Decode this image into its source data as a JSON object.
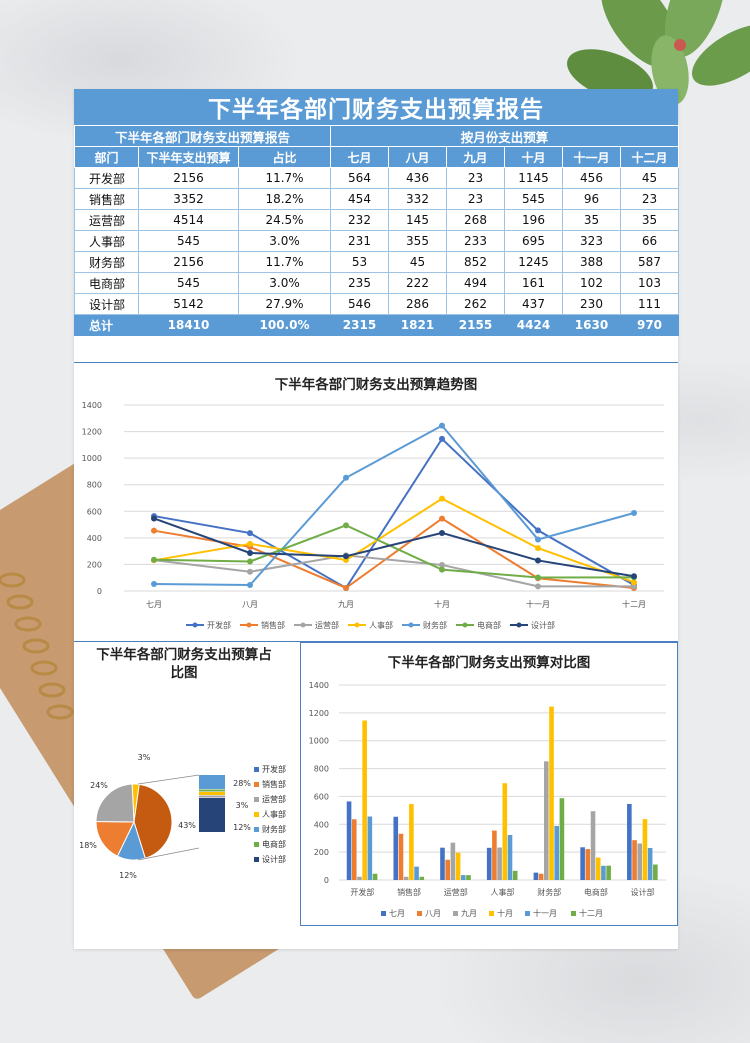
{
  "report": {
    "main_title": "下半年各部门财务支出预算报告",
    "left_header": "下半年各部门财务支出预算报告",
    "right_header": "按月份支出预算",
    "columns": [
      "部门",
      "下半年支出预算",
      "占比",
      "七月",
      "八月",
      "九月",
      "十月",
      "十一月",
      "十二月"
    ],
    "rows": [
      {
        "dept": "开发部",
        "budget": "2156",
        "pct": "11.7%",
        "m": [
          "564",
          "436",
          "23",
          "1145",
          "456",
          "45"
        ]
      },
      {
        "dept": "销售部",
        "budget": "3352",
        "pct": "18.2%",
        "m": [
          "454",
          "332",
          "23",
          "545",
          "96",
          "23"
        ]
      },
      {
        "dept": "运营部",
        "budget": "4514",
        "pct": "24.5%",
        "m": [
          "232",
          "145",
          "268",
          "196",
          "35",
          "35"
        ]
      },
      {
        "dept": "人事部",
        "budget": "545",
        "pct": "3.0%",
        "m": [
          "231",
          "355",
          "233",
          "695",
          "323",
          "66"
        ]
      },
      {
        "dept": "财务部",
        "budget": "2156",
        "pct": "11.7%",
        "m": [
          "53",
          "45",
          "852",
          "1245",
          "388",
          "587"
        ]
      },
      {
        "dept": "电商部",
        "budget": "545",
        "pct": "3.0%",
        "m": [
          "235",
          "222",
          "494",
          "161",
          "102",
          "103"
        ]
      },
      {
        "dept": "设计部",
        "budget": "5142",
        "pct": "27.9%",
        "m": [
          "546",
          "286",
          "262",
          "437",
          "230",
          "111"
        ]
      }
    ],
    "total": {
      "label": "总计",
      "budget": "18410",
      "pct": "100.0%",
      "m": [
        "2315",
        "1821",
        "2155",
        "4424",
        "1630",
        "970"
      ]
    }
  },
  "colors": {
    "header_blue": "#5b9bd5",
    "series": [
      "#4472c4",
      "#ed7d31",
      "#a5a5a5",
      "#ffc000",
      "#5b9bd5",
      "#70ad47",
      "#264478"
    ]
  },
  "chart_data": [
    {
      "type": "line",
      "title": "下半年各部门财务支出预算趋势图",
      "categories": [
        "七月",
        "八月",
        "九月",
        "十月",
        "十一月",
        "十二月"
      ],
      "ylim": [
        0,
        1400
      ],
      "yticks": [
        "0",
        "200",
        "400",
        "600",
        "800",
        "1000",
        "1200",
        "1400"
      ],
      "legend_position": "bottom",
      "series": [
        {
          "name": "开发部",
          "values": [
            564,
            436,
            23,
            1145,
            456,
            45
          ]
        },
        {
          "name": "销售部",
          "values": [
            454,
            332,
            23,
            545,
            96,
            23
          ]
        },
        {
          "name": "运营部",
          "values": [
            232,
            145,
            268,
            196,
            35,
            35
          ]
        },
        {
          "name": "人事部",
          "values": [
            231,
            355,
            233,
            695,
            323,
            66
          ]
        },
        {
          "name": "财务部",
          "values": [
            53,
            45,
            852,
            1245,
            388,
            587
          ]
        },
        {
          "name": "电商部",
          "values": [
            235,
            222,
            494,
            161,
            102,
            103
          ]
        },
        {
          "name": "设计部",
          "values": [
            546,
            286,
            262,
            437,
            230,
            111
          ]
        }
      ]
    },
    {
      "type": "pie",
      "title": "下半年各部门财务支出预算占比图",
      "slices": [
        {
          "name": "开发部",
          "value": 11.7,
          "label": "12%"
        },
        {
          "name": "销售部",
          "value": 18.2,
          "label": "18%"
        },
        {
          "name": "运营部",
          "value": 24.5,
          "label": "24%"
        },
        {
          "name": "人事部",
          "value": 3.0,
          "label": "3%"
        },
        {
          "name": "财务部",
          "value": 11.7,
          "label": "12%"
        },
        {
          "name": "电商部",
          "value": 3.0,
          "label": "3%"
        },
        {
          "name": "设计部",
          "value": 27.9,
          "label": "28%"
        }
      ],
      "big_slice_label": "43%",
      "legend_position": "right"
    },
    {
      "type": "bar",
      "title": "下半年各部门财务支出预算对比图",
      "categories": [
        "开发部",
        "销售部",
        "运营部",
        "人事部",
        "财务部",
        "电商部",
        "设计部"
      ],
      "ylim": [
        0,
        1400
      ],
      "yticks": [
        "0",
        "200",
        "400",
        "600",
        "800",
        "1000",
        "1200",
        "1400"
      ],
      "legend_position": "bottom",
      "series": [
        {
          "name": "七月",
          "values": [
            564,
            454,
            232,
            231,
            53,
            235,
            546
          ]
        },
        {
          "name": "八月",
          "values": [
            436,
            332,
            145,
            355,
            45,
            222,
            286
          ]
        },
        {
          "name": "九月",
          "values": [
            23,
            23,
            268,
            233,
            852,
            494,
            262
          ]
        },
        {
          "name": "十月",
          "values": [
            1145,
            545,
            196,
            695,
            1245,
            161,
            437
          ]
        },
        {
          "name": "十一月",
          "values": [
            456,
            96,
            35,
            323,
            388,
            102,
            230
          ]
        },
        {
          "name": "十二月",
          "values": [
            45,
            23,
            35,
            66,
            587,
            103,
            111
          ]
        }
      ]
    }
  ]
}
